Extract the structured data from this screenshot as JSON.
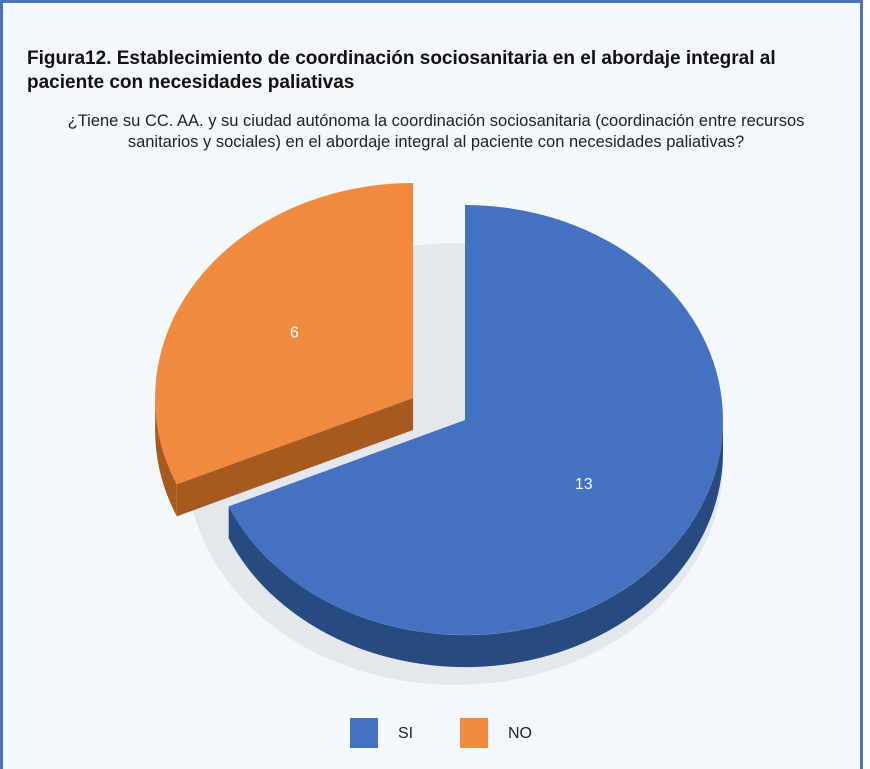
{
  "chart_data": {
    "type": "pie",
    "title": "Figura12. Establecimiento de coordinación sociosanitaria en el abordaje integral al paciente con necesidades paliativas",
    "subtitle": "¿Tiene su CC. AA. y su ciudad autónoma la coordinación sociosanitaria (coordinación entre recursos sanitarios y sociales) en el abordaje integral al paciente con necesidades paliativas?",
    "categories": [
      "SI",
      "NO"
    ],
    "values": [
      13,
      6
    ],
    "colors": [
      "#4472c0",
      "#f08a3e"
    ],
    "side_colors": [
      "#274a80",
      "#a65a20"
    ],
    "exploded": [
      false,
      true
    ],
    "legend": "bottom"
  }
}
